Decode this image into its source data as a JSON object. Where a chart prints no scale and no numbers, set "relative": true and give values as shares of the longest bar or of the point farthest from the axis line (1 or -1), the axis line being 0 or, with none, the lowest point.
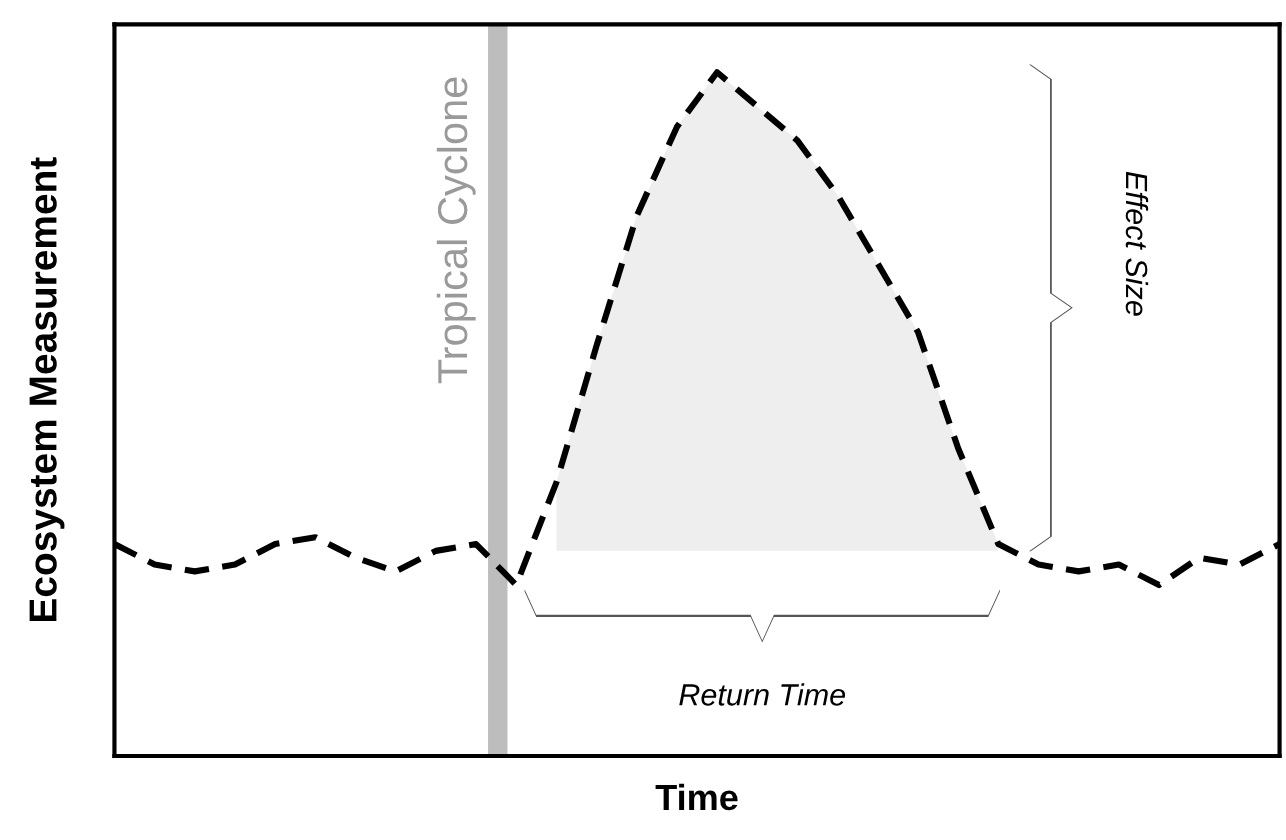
{
  "chart_data": {
    "type": "line",
    "relative": true,
    "xlabel": "Time",
    "ylabel": "Ecosystem Measurement",
    "categories": [
      null,
      null,
      null,
      null,
      null,
      null,
      null,
      null,
      null,
      null,
      null,
      null,
      null,
      null,
      null,
      null,
      null,
      null,
      null,
      null,
      null,
      null,
      null,
      null,
      null,
      null,
      null,
      null,
      null,
      null
    ],
    "series": [
      {
        "color": "#000000",
        "line_style": "dashed",
        "values": [
          0.31,
          0.28,
          0.27,
          0.28,
          0.31,
          0.32,
          0.29,
          0.27,
          0.3,
          0.31,
          0.25,
          0.4,
          0.6,
          0.79,
          0.92,
          1.0,
          0.95,
          0.9,
          0.82,
          0.72,
          0.62,
          0.45,
          0.31,
          0.28,
          0.27,
          0.28,
          0.25,
          0.29,
          0.28,
          0.31
        ],
        "lower": [
          null,
          null,
          null,
          null,
          null,
          null,
          null,
          null,
          null,
          null,
          null,
          0.3,
          0.3,
          0.3,
          0.3,
          0.3,
          0.3,
          0.3,
          0.3,
          0.3,
          0.3,
          0.3,
          0.3,
          null,
          null,
          null,
          null,
          null,
          null,
          null
        ],
        "upper": [
          null,
          null,
          null,
          null,
          null,
          null,
          null,
          null,
          null,
          null,
          null,
          0.4,
          0.6,
          0.79,
          0.92,
          1.0,
          0.95,
          0.9,
          0.82,
          0.72,
          0.62,
          0.45,
          0.31,
          null,
          null,
          null,
          null,
          null,
          null,
          null
        ]
      }
    ],
    "annotations": [
      "Effect Size",
      "Return Time",
      "Tropical Cyclone"
    ],
    "grid": false,
    "legend": false,
    "tick_labels": false,
    "marker": "none"
  }
}
